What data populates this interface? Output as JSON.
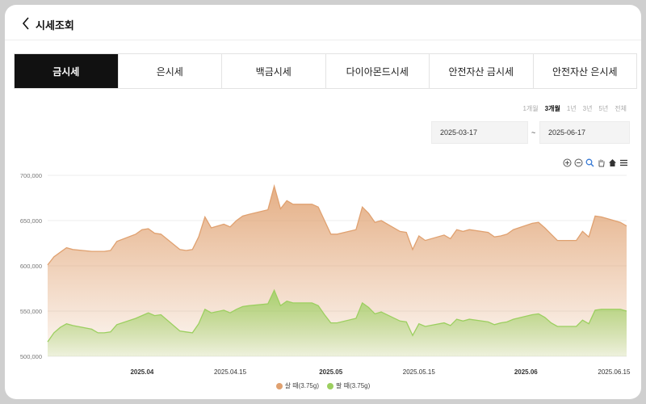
{
  "header": {
    "title": "시세조회"
  },
  "tabs": [
    "금시세",
    "은시세",
    "백금시세",
    "다이아몬드시세",
    "안전자산 금시세",
    "안전자산 은시세"
  ],
  "periods": [
    "1개월",
    "3개월",
    "1년",
    "3년",
    "5년",
    "전체"
  ],
  "date_range": {
    "start": "2025-03-17",
    "separator": "~",
    "end": "2025-06-17"
  },
  "chart_tools": [
    "zoom-in-icon",
    "zoom-out-icon",
    "magnifier-icon",
    "pan-hand-icon",
    "home-icon",
    "menu-icon"
  ],
  "colors": {
    "buy": "#e0a170",
    "sell": "#9ccf60",
    "active_tab": "#111111"
  },
  "chart_data": {
    "type": "area",
    "ylim": [
      500000,
      700000
    ],
    "yticks": [
      "500,000",
      "550,000",
      "600,000",
      "650,000",
      "700,000"
    ],
    "xlim": [
      "2025-03-17",
      "2025-06-17"
    ],
    "xticks": [
      {
        "date": "2025-04-01",
        "label": "2025.04",
        "bold": true
      },
      {
        "date": "2025-04-15",
        "label": "2025.04.15",
        "bold": false
      },
      {
        "date": "2025-05-01",
        "label": "2025.05",
        "bold": true
      },
      {
        "date": "2025-05-15",
        "label": "2025.05.15",
        "bold": false
      },
      {
        "date": "2025-06-01",
        "label": "2025.06",
        "bold": true
      },
      {
        "date": "2025-06-15",
        "label": "2025.06.15",
        "bold": false
      }
    ],
    "series": [
      {
        "name": "살 때(3.75g)",
        "color": "#e0a170",
        "points": [
          [
            "2025-03-17",
            601000
          ],
          [
            "2025-03-18",
            610000
          ],
          [
            "2025-03-19",
            615000
          ],
          [
            "2025-03-20",
            620000
          ],
          [
            "2025-03-21",
            618000
          ],
          [
            "2025-03-24",
            616000
          ],
          [
            "2025-03-25",
            616000
          ],
          [
            "2025-03-26",
            616000
          ],
          [
            "2025-03-27",
            617000
          ],
          [
            "2025-03-28",
            627000
          ],
          [
            "2025-03-31",
            635000
          ],
          [
            "2025-04-01",
            640000
          ],
          [
            "2025-04-02",
            641000
          ],
          [
            "2025-04-03",
            636000
          ],
          [
            "2025-04-04",
            635000
          ],
          [
            "2025-04-07",
            618000
          ],
          [
            "2025-04-08",
            617000
          ],
          [
            "2025-04-09",
            618000
          ],
          [
            "2025-04-10",
            632000
          ],
          [
            "2025-04-11",
            654000
          ],
          [
            "2025-04-12",
            642000
          ],
          [
            "2025-04-14",
            646000
          ],
          [
            "2025-04-15",
            643000
          ],
          [
            "2025-04-16",
            650000
          ],
          [
            "2025-04-17",
            655000
          ],
          [
            "2025-04-18",
            657000
          ],
          [
            "2025-04-21",
            662000
          ],
          [
            "2025-04-22",
            688000
          ],
          [
            "2025-04-23",
            663000
          ],
          [
            "2025-04-24",
            672000
          ],
          [
            "2025-04-25",
            668000
          ],
          [
            "2025-04-28",
            668000
          ],
          [
            "2025-04-29",
            665000
          ],
          [
            "2025-04-30",
            650000
          ],
          [
            "2025-05-01",
            635000
          ],
          [
            "2025-05-02",
            635000
          ],
          [
            "2025-05-05",
            640000
          ],
          [
            "2025-05-06",
            665000
          ],
          [
            "2025-05-07",
            658000
          ],
          [
            "2025-05-08",
            648000
          ],
          [
            "2025-05-09",
            650000
          ],
          [
            "2025-05-12",
            638000
          ],
          [
            "2025-05-13",
            637000
          ],
          [
            "2025-05-14",
            618000
          ],
          [
            "2025-05-15",
            633000
          ],
          [
            "2025-05-16",
            628000
          ],
          [
            "2025-05-19",
            634000
          ],
          [
            "2025-05-20",
            630000
          ],
          [
            "2025-05-21",
            640000
          ],
          [
            "2025-05-22",
            638000
          ],
          [
            "2025-05-23",
            640000
          ],
          [
            "2025-05-26",
            637000
          ],
          [
            "2025-05-27",
            632000
          ],
          [
            "2025-05-28",
            633000
          ],
          [
            "2025-05-29",
            635000
          ],
          [
            "2025-05-30",
            640000
          ],
          [
            "2025-06-02",
            647000
          ],
          [
            "2025-06-03",
            648000
          ],
          [
            "2025-06-04",
            642000
          ],
          [
            "2025-06-05",
            635000
          ],
          [
            "2025-06-06",
            628000
          ],
          [
            "2025-06-09",
            628000
          ],
          [
            "2025-06-10",
            638000
          ],
          [
            "2025-06-11",
            632000
          ],
          [
            "2025-06-12",
            655000
          ],
          [
            "2025-06-13",
            654000
          ],
          [
            "2025-06-16",
            648000
          ],
          [
            "2025-06-17",
            644000
          ]
        ]
      },
      {
        "name": "팔 때(3.75g)",
        "color": "#9ccf60",
        "points": [
          [
            "2025-03-17",
            516000
          ],
          [
            "2025-03-18",
            526000
          ],
          [
            "2025-03-19",
            532000
          ],
          [
            "2025-03-20",
            536000
          ],
          [
            "2025-03-21",
            534000
          ],
          [
            "2025-03-24",
            530000
          ],
          [
            "2025-03-25",
            526000
          ],
          [
            "2025-03-26",
            526000
          ],
          [
            "2025-03-27",
            527000
          ],
          [
            "2025-03-28",
            535000
          ],
          [
            "2025-03-31",
            542000
          ],
          [
            "2025-04-01",
            545000
          ],
          [
            "2025-04-02",
            548000
          ],
          [
            "2025-04-03",
            545000
          ],
          [
            "2025-04-04",
            546000
          ],
          [
            "2025-04-07",
            528000
          ],
          [
            "2025-04-08",
            527000
          ],
          [
            "2025-04-09",
            526000
          ],
          [
            "2025-04-10",
            536000
          ],
          [
            "2025-04-11",
            552000
          ],
          [
            "2025-04-12",
            548000
          ],
          [
            "2025-04-14",
            551000
          ],
          [
            "2025-04-15",
            548000
          ],
          [
            "2025-04-16",
            552000
          ],
          [
            "2025-04-17",
            555000
          ],
          [
            "2025-04-18",
            556000
          ],
          [
            "2025-04-21",
            558000
          ],
          [
            "2025-04-22",
            573000
          ],
          [
            "2025-04-23",
            556000
          ],
          [
            "2025-04-24",
            561000
          ],
          [
            "2025-04-25",
            559000
          ],
          [
            "2025-04-28",
            559000
          ],
          [
            "2025-04-29",
            556000
          ],
          [
            "2025-04-30",
            546000
          ],
          [
            "2025-05-01",
            537000
          ],
          [
            "2025-05-02",
            537000
          ],
          [
            "2025-05-05",
            542000
          ],
          [
            "2025-05-06",
            559000
          ],
          [
            "2025-05-07",
            554000
          ],
          [
            "2025-05-08",
            547000
          ],
          [
            "2025-05-09",
            549000
          ],
          [
            "2025-05-12",
            539000
          ],
          [
            "2025-05-13",
            538000
          ],
          [
            "2025-05-14",
            523000
          ],
          [
            "2025-05-15",
            536000
          ],
          [
            "2025-05-16",
            533000
          ],
          [
            "2025-05-19",
            537000
          ],
          [
            "2025-05-20",
            534000
          ],
          [
            "2025-05-21",
            541000
          ],
          [
            "2025-05-22",
            539000
          ],
          [
            "2025-05-23",
            541000
          ],
          [
            "2025-05-26",
            538000
          ],
          [
            "2025-05-27",
            535000
          ],
          [
            "2025-05-28",
            537000
          ],
          [
            "2025-05-29",
            538000
          ],
          [
            "2025-05-30",
            541000
          ],
          [
            "2025-06-02",
            546000
          ],
          [
            "2025-06-03",
            547000
          ],
          [
            "2025-06-04",
            543000
          ],
          [
            "2025-06-05",
            537000
          ],
          [
            "2025-06-06",
            533000
          ],
          [
            "2025-06-09",
            533000
          ],
          [
            "2025-06-10",
            540000
          ],
          [
            "2025-06-11",
            536000
          ],
          [
            "2025-06-12",
            551000
          ],
          [
            "2025-06-13",
            552000
          ],
          [
            "2025-06-16",
            552000
          ],
          [
            "2025-06-17",
            550000
          ]
        ]
      }
    ]
  }
}
